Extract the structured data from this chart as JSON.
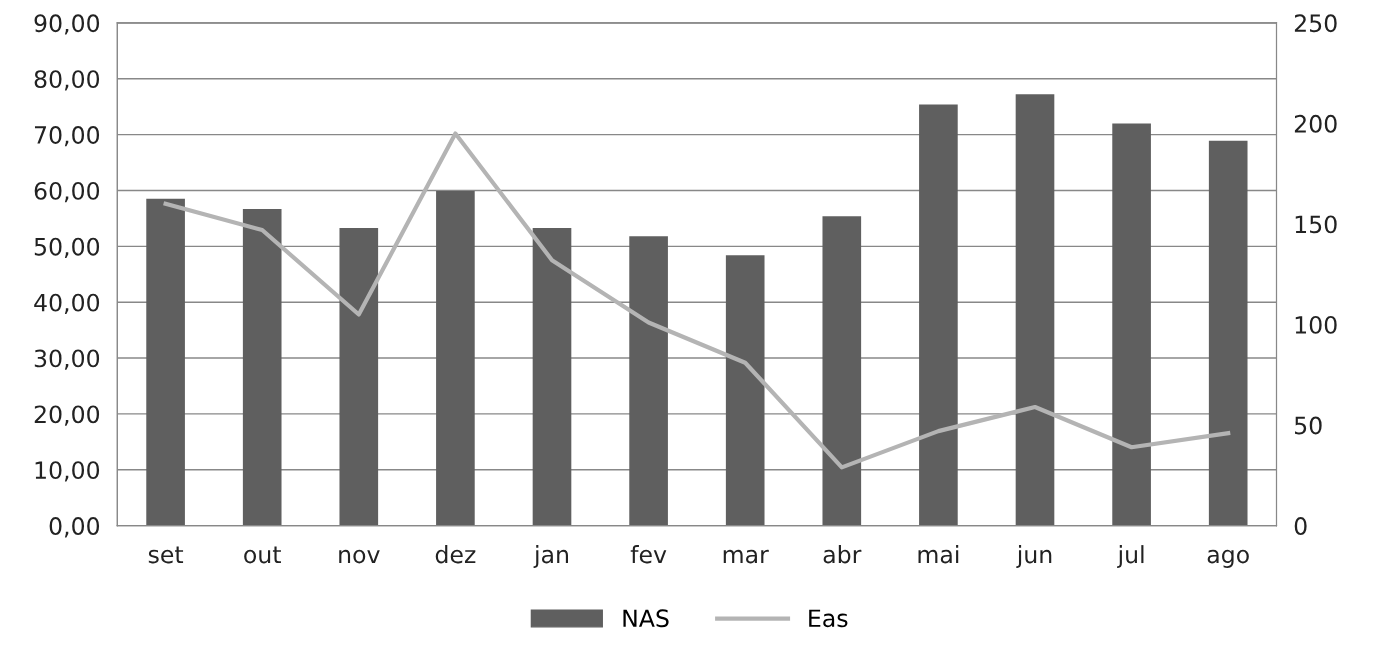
{
  "chart_data": {
    "type": "bar",
    "categories": [
      "set",
      "out",
      "nov",
      "dez",
      "jan",
      "fev",
      "mar",
      "abr",
      "mai",
      "jun",
      "jul",
      "ago"
    ],
    "series": [
      {
        "name": "NAS",
        "color": "#5f5f5f",
        "values": [
          58.5,
          56.7,
          53.3,
          59.9,
          53.3,
          51.8,
          48.4,
          55.4,
          75.4,
          77.2,
          72.0,
          68.9
        ]
      },
      {
        "name": "Eas",
        "color": "#b4b4b4",
        "type": "line",
        "axis": "y2",
        "values": [
          160,
          147,
          105,
          195,
          132,
          101,
          81,
          29,
          47,
          59,
          39,
          46
        ]
      }
    ],
    "ylim": [
      0,
      90
    ],
    "yticks": [
      {
        "value": 0,
        "label": "0,00"
      },
      {
        "value": 10,
        "label": "10,00"
      },
      {
        "value": 20,
        "label": "20,00"
      },
      {
        "value": 30,
        "label": "30,00"
      },
      {
        "value": 40,
        "label": "40,00"
      },
      {
        "value": 50,
        "label": "50,00"
      },
      {
        "value": 60,
        "label": "60,00"
      },
      {
        "value": 70,
        "label": "70,00"
      },
      {
        "value": 80,
        "label": "80,00"
      },
      {
        "value": 90,
        "label": "90,00"
      }
    ],
    "y2lim": [
      0,
      250
    ],
    "y2ticks": [
      0,
      50,
      100,
      150,
      200,
      250
    ],
    "grid": "y",
    "legend": "bottom",
    "marker": "none",
    "line_style": "solid"
  }
}
